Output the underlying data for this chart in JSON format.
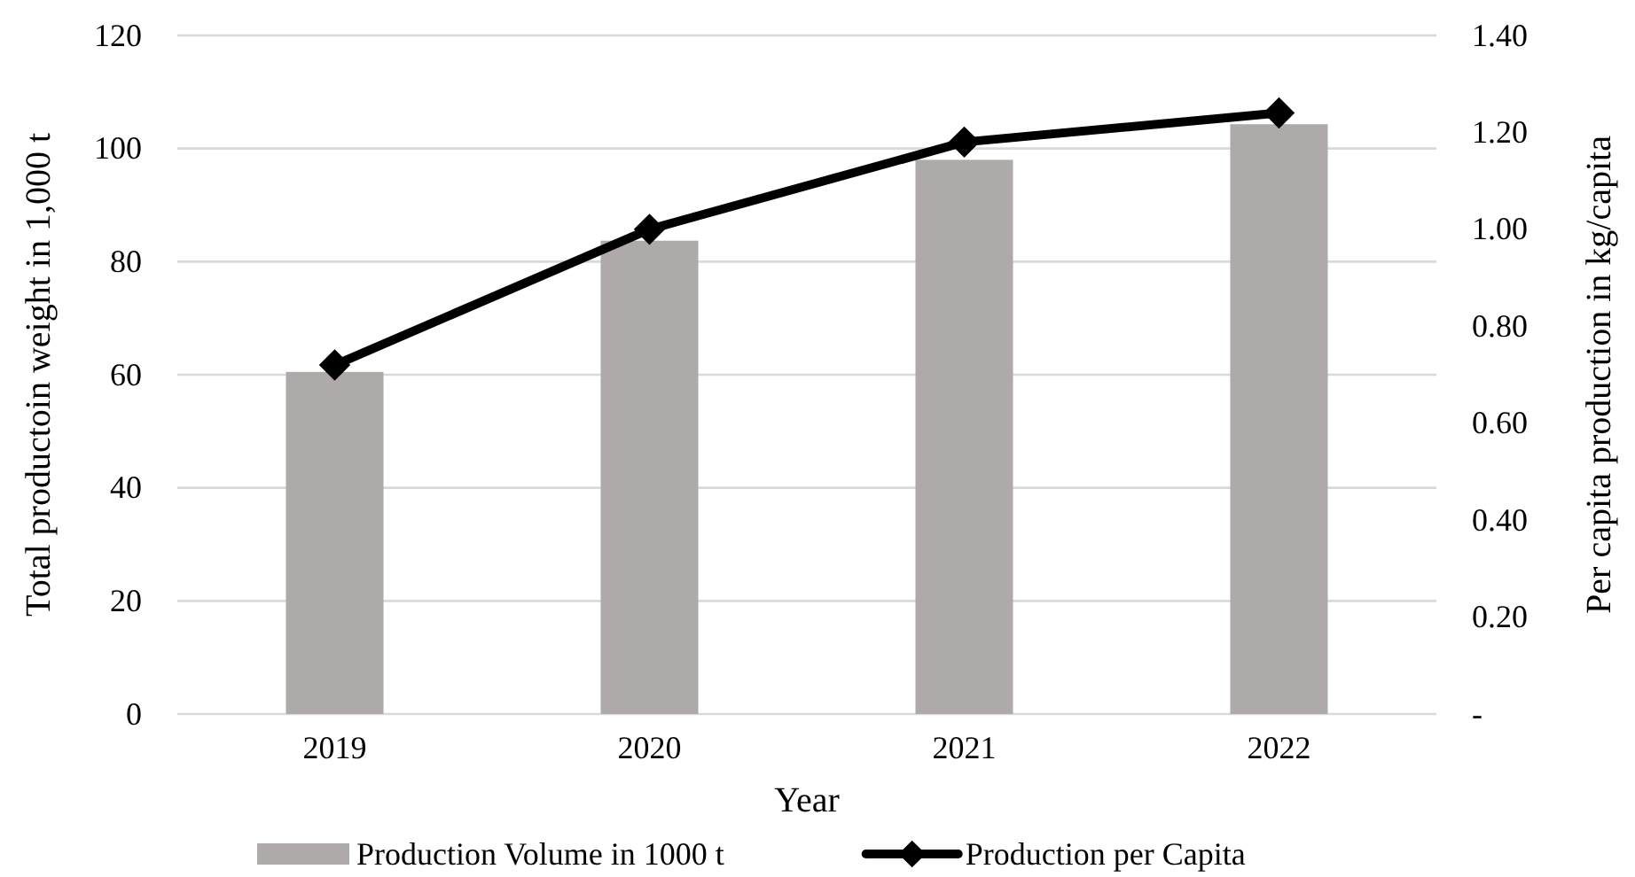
{
  "chart_data": {
    "type": "bar",
    "xlabel": "Year",
    "ylabel": "Total productoin weight in 1,000 t",
    "y2label": "Per capita production in kg/capita",
    "categories": [
      "2019",
      "2020",
      "2021",
      "2022"
    ],
    "series": [
      {
        "name": "Production Volume in 1000 t",
        "color": "#aeaaaa",
        "values": [
          60.5,
          83.7,
          98,
          104.3
        ]
      },
      {
        "name": "Production per Capita",
        "type": "line",
        "axis": "y2",
        "color": "#000000",
        "values": [
          0.72,
          1.0,
          1.18,
          1.24
        ],
        "marker": "diamond",
        "line_style": "solid"
      }
    ],
    "ylim": [
      0,
      120
    ],
    "yticks": [
      0,
      20,
      40,
      60,
      80,
      100,
      120
    ],
    "y2lim": [
      0,
      1.4
    ],
    "y2ticks": [
      {
        "value": 0,
        "label": "-"
      },
      {
        "value": 0.2,
        "label": "0.20"
      },
      {
        "value": 0.4,
        "label": "0.40"
      },
      {
        "value": 0.6,
        "label": "0.60"
      },
      {
        "value": 0.8,
        "label": "0.80"
      },
      {
        "value": 1.0,
        "label": "1.00"
      },
      {
        "value": 1.2,
        "label": "1.20"
      },
      {
        "value": 1.4,
        "label": "1.40"
      }
    ],
    "grid": "y",
    "legend": "bottom"
  }
}
